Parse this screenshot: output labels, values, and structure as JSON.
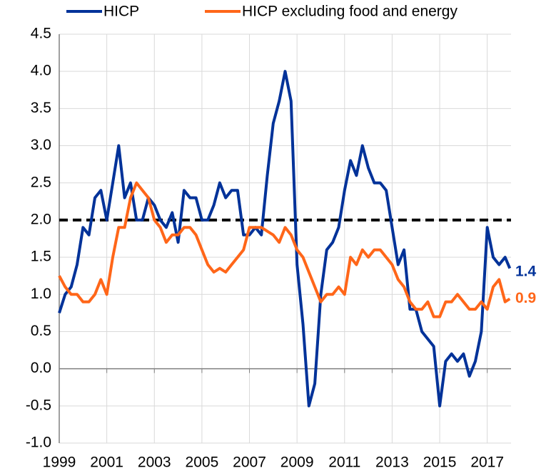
{
  "chart_data": {
    "type": "line",
    "x": [
      1999,
      1999.25,
      1999.5,
      1999.75,
      2000,
      2000.25,
      2000.5,
      2000.75,
      2001,
      2001.25,
      2001.5,
      2001.75,
      2002,
      2002.25,
      2002.5,
      2002.75,
      2003,
      2003.25,
      2003.5,
      2003.75,
      2004,
      2004.25,
      2004.5,
      2004.75,
      2005,
      2005.25,
      2005.5,
      2005.75,
      2006,
      2006.25,
      2006.5,
      2006.75,
      2007,
      2007.25,
      2007.5,
      2007.75,
      2008,
      2008.25,
      2008.5,
      2008.75,
      2009,
      2009.25,
      2009.5,
      2009.75,
      2010,
      2010.25,
      2010.5,
      2010.75,
      2011,
      2011.25,
      2011.5,
      2011.75,
      2012,
      2012.25,
      2012.5,
      2012.75,
      2013,
      2013.25,
      2013.5,
      2013.75,
      2014,
      2014.25,
      2014.5,
      2014.75,
      2015,
      2015.25,
      2015.5,
      2015.75,
      2016,
      2016.25,
      2016.5,
      2016.75,
      2017,
      2017.25,
      2017.5,
      2017.75,
      2017.95
    ],
    "series": [
      {
        "name": "HICP",
        "color": "#003299",
        "end_label": "1.4",
        "values": [
          0.75,
          1.0,
          1.1,
          1.4,
          1.9,
          1.8,
          2.3,
          2.4,
          2.0,
          2.5,
          3.0,
          2.3,
          2.5,
          2.0,
          2.0,
          2.3,
          2.2,
          2.0,
          1.9,
          2.1,
          1.7,
          2.4,
          2.3,
          2.3,
          2.0,
          2.0,
          2.2,
          2.5,
          2.3,
          2.4,
          2.4,
          1.8,
          1.8,
          1.9,
          1.8,
          2.6,
          3.3,
          3.6,
          4.0,
          3.6,
          1.4,
          0.6,
          -0.5,
          -0.2,
          1.0,
          1.6,
          1.7,
          1.9,
          2.4,
          2.8,
          2.6,
          3.0,
          2.7,
          2.5,
          2.5,
          2.4,
          1.9,
          1.4,
          1.6,
          0.8,
          0.8,
          0.5,
          0.4,
          0.3,
          -0.5,
          0.1,
          0.2,
          0.1,
          0.2,
          -0.1,
          0.1,
          0.5,
          1.9,
          1.5,
          1.4,
          1.5,
          1.35
        ]
      },
      {
        "name": "HICP excluding food and energy",
        "color": "#ff6619",
        "end_label": "0.9",
        "values": [
          1.25,
          1.1,
          1.0,
          1.0,
          0.9,
          0.9,
          1.0,
          1.2,
          1.0,
          1.5,
          1.9,
          1.9,
          2.3,
          2.5,
          2.4,
          2.3,
          2.0,
          1.9,
          1.7,
          1.8,
          1.8,
          1.9,
          1.9,
          1.8,
          1.6,
          1.4,
          1.3,
          1.35,
          1.3,
          1.4,
          1.5,
          1.6,
          1.9,
          1.9,
          1.9,
          1.85,
          1.8,
          1.7,
          1.9,
          1.8,
          1.6,
          1.5,
          1.3,
          1.1,
          0.9,
          1.0,
          1.0,
          1.1,
          1.0,
          1.5,
          1.4,
          1.6,
          1.5,
          1.6,
          1.6,
          1.5,
          1.4,
          1.2,
          1.1,
          0.9,
          0.8,
          0.8,
          0.9,
          0.7,
          0.7,
          0.9,
          0.9,
          1.0,
          0.9,
          0.8,
          0.8,
          0.9,
          0.8,
          1.1,
          1.2,
          0.9,
          0.94
        ]
      }
    ],
    "reference_line": 2,
    "xlim": [
      1999,
      2018
    ],
    "xticks": [
      1999,
      2001,
      2003,
      2005,
      2007,
      2009,
      2011,
      2013,
      2015,
      2017
    ],
    "ylim": [
      -1,
      4.5
    ],
    "yticks": [
      {
        "value": -1,
        "label": "-1.0"
      },
      {
        "value": -0.5,
        "label": "-0.5"
      },
      {
        "value": 0,
        "label": "0.0"
      },
      {
        "value": 0.5,
        "label": "0.5"
      },
      {
        "value": 1,
        "label": "1.0"
      },
      {
        "value": 1.5,
        "label": "1.5"
      },
      {
        "value": 2,
        "label": "2.0"
      },
      {
        "value": 2.5,
        "label": "2.5"
      },
      {
        "value": 3,
        "label": "3.0"
      },
      {
        "value": 3.5,
        "label": "3.5"
      },
      {
        "value": 4,
        "label": "4.0"
      },
      {
        "value": 4.5,
        "label": "4.5"
      }
    ],
    "grid": true
  }
}
